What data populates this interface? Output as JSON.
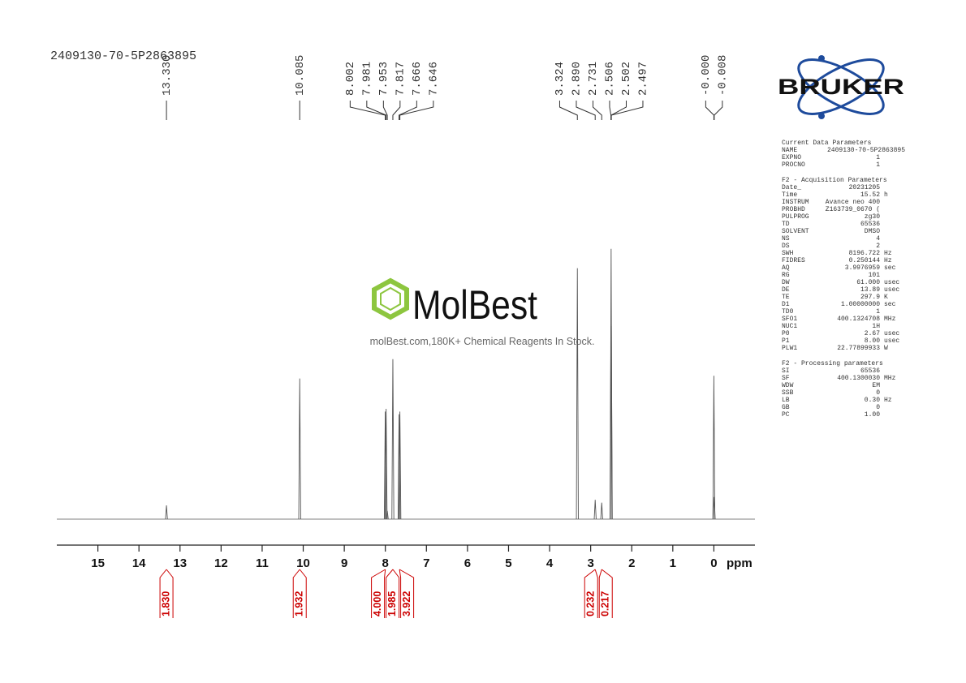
{
  "chart_data": {
    "type": "spectrum",
    "sample_id": "2409130-70-5P2863895",
    "xlabel": "ppm",
    "xlim": [
      16,
      -1
    ],
    "xticks": [
      15,
      14,
      13,
      12,
      11,
      10,
      9,
      8,
      7,
      6,
      5,
      4,
      3,
      2,
      1,
      0
    ],
    "ylim": [
      0,
      100
    ],
    "color": "#555555",
    "peaks": {
      "ppm": [
        13.33,
        10.085,
        8.002,
        7.981,
        7.953,
        7.817,
        7.666,
        7.646,
        3.324,
        2.89,
        2.731,
        2.506,
        2.502,
        2.497,
        0,
        -0.008
      ],
      "labels": [
        "13.330",
        "10.085",
        "8.002",
        "7.981",
        "7.953",
        "7.817",
        "7.666",
        "7.646",
        "3.324",
        "2.890",
        "2.731",
        "2.506",
        "2.502",
        "2.497",
        "-0.000",
        "-0.008"
      ],
      "heights": [
        5,
        51,
        39,
        40,
        3,
        58,
        38,
        39,
        91,
        7,
        6,
        70,
        98,
        70,
        52,
        8
      ]
    },
    "integrals": {
      "ppm": [
        13.33,
        10.085,
        8.0,
        7.817,
        7.656,
        2.89,
        2.731
      ],
      "labels": [
        "1.830",
        "1.932",
        "4.000",
        "1.985",
        "3.922",
        "0.232",
        "0.217"
      ],
      "color": "#cc0000"
    },
    "watermark": {
      "name": "MolBest",
      "tagline": "molBest.com,180K+ Chemical Reagents In Stock."
    },
    "brand": "BRUKER",
    "parameters": [
      {
        "title": "Current Data Parameters",
        "rows": [
          [
            "NAME",
            "2409130-70-5P2863895"
          ],
          [
            "EXPNO",
            "1"
          ],
          [
            "PROCNO",
            "1"
          ]
        ]
      },
      {
        "title": "F2 - Acquisition Parameters",
        "rows": [
          [
            "Date_",
            "20231205"
          ],
          [
            "Time",
            "15.52",
            "h"
          ],
          [
            "INSTRUM",
            "Avance neo 400"
          ],
          [
            "PROBHD",
            "Z163739_0670 ("
          ],
          [
            "PULPROG",
            "zg30"
          ],
          [
            "TD",
            "65536"
          ],
          [
            "SOLVENT",
            "DMSO"
          ],
          [
            "NS",
            "4"
          ],
          [
            "DS",
            "2"
          ],
          [
            "SWH",
            "8196.722",
            "Hz"
          ],
          [
            "FIDRES",
            "0.250144",
            "Hz"
          ],
          [
            "AQ",
            "3.9976959",
            "sec"
          ],
          [
            "RG",
            "101"
          ],
          [
            "DW",
            "61.000",
            "usec"
          ],
          [
            "DE",
            "13.89",
            "usec"
          ],
          [
            "TE",
            "297.9",
            "K"
          ],
          [
            "D1",
            "1.00000000",
            "sec"
          ],
          [
            "TD0",
            "1"
          ],
          [
            "SFO1",
            "400.1324708",
            "MHz"
          ],
          [
            "NUC1",
            "1H"
          ],
          [
            "P0",
            "2.67",
            "usec"
          ],
          [
            "P1",
            "8.00",
            "usec"
          ],
          [
            "PLW1",
            "22.77899933",
            "W"
          ]
        ]
      },
      {
        "title": "F2 - Processing parameters",
        "rows": [
          [
            "SI",
            "65536"
          ],
          [
            "SF",
            "400.1300030",
            "MHz"
          ],
          [
            "WDW",
            "EM"
          ],
          [
            "SSB",
            "0"
          ],
          [
            "LB",
            "0.30",
            "Hz"
          ],
          [
            "GB",
            "0"
          ],
          [
            "PC",
            "1.00"
          ]
        ]
      }
    ]
  }
}
